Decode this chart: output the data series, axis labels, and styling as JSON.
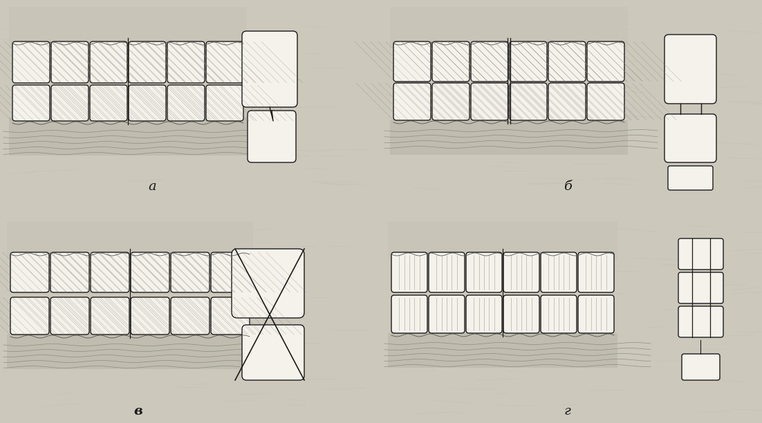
{
  "figsize": [
    11.02,
    6.12
  ],
  "dpi": 100,
  "bg_color": "#ccc8bc",
  "tooth_fill": "#f5f2eb",
  "tooth_edge": "#1a1a1a",
  "gum_fill": "#b8b4a8",
  "text_color": "#1a1a1a",
  "panel_labels": [
    "а",
    "б",
    "в",
    "Г"
  ],
  "lw": 1.0
}
